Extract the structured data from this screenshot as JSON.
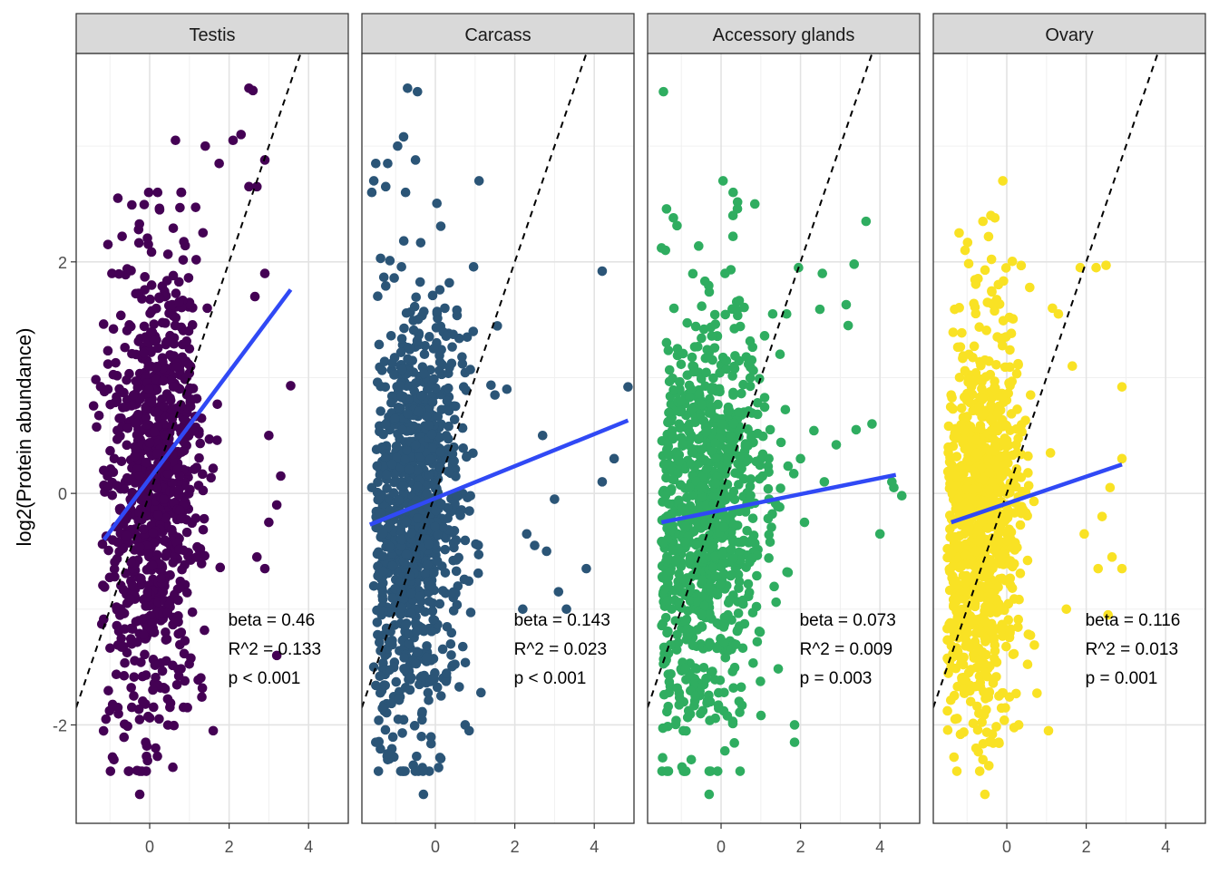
{
  "chart_data": {
    "type": "scatter",
    "ylabel": "log2(Protein abundance)",
    "xlabel": "",
    "xlim": [
      -1.85,
      5.0
    ],
    "ylim": [
      -2.85,
      3.8
    ],
    "x_ticks": [
      0,
      2,
      4
    ],
    "y_ticks": [
      -2,
      0,
      2
    ],
    "grid": true,
    "reference_line": {
      "style": "dashed",
      "color": "#000000",
      "slope": 1,
      "intercept": 0
    },
    "fit_color": "#3049f5",
    "panels": [
      {
        "name": "Testis",
        "color": "#440154",
        "fit": {
          "x": [
            -1.15,
            3.55
          ],
          "y": [
            -0.4,
            1.76
          ]
        },
        "stats": {
          "beta": "beta = 0.46",
          "r2": "R^2 = 0.133",
          "p": "p < 0.001"
        },
        "cloud": {
          "x_center": 0.1,
          "x_spread": 0.6,
          "y_center": 0.0,
          "y_spread": 0.95,
          "n": 900
        },
        "points": [
          [
            2.5,
            3.5
          ],
          [
            2.6,
            3.48
          ],
          [
            1.4,
            3.0
          ],
          [
            2.1,
            3.05
          ],
          [
            2.3,
            3.1
          ],
          [
            2.9,
            2.88
          ],
          [
            1.75,
            2.85
          ],
          [
            3.55,
            0.93
          ],
          [
            3.2,
            -1.4
          ],
          [
            3.3,
            0.15
          ],
          [
            3.2,
            -0.1
          ],
          [
            3.0,
            -0.25
          ],
          [
            2.9,
            -0.65
          ],
          [
            3.0,
            0.5
          ],
          [
            -0.25,
            -2.6
          ],
          [
            -0.9,
            -2.3
          ],
          [
            -0.1,
            -2.15
          ],
          [
            0.15,
            -2.2
          ],
          [
            1.6,
            -2.05
          ],
          [
            -1.1,
            -1.95
          ],
          [
            -0.4,
            -1.75
          ],
          [
            -0.8,
            -1.85
          ],
          [
            0.95,
            -1.85
          ],
          [
            2.9,
            1.9
          ],
          [
            2.65,
            1.7
          ],
          [
            2.5,
            2.65
          ],
          [
            2.7,
            2.65
          ],
          [
            1.45,
            1.6
          ],
          [
            2.7,
            -0.55
          ],
          [
            -1.05,
            2.15
          ],
          [
            -0.95,
            1.9
          ],
          [
            -1.05,
            0.9
          ],
          [
            0.65,
            3.05
          ],
          [
            -0.8,
            2.55
          ],
          [
            0.25,
            2.45
          ]
        ]
      },
      {
        "name": "Carcass",
        "color": "#2b5577",
        "fit": {
          "x": [
            -1.65,
            4.85
          ],
          "y": [
            -0.27,
            0.63
          ]
        },
        "stats": {
          "beta": "beta = 0.143",
          "r2": "R^2 = 0.023",
          "p": "p < 0.001"
        },
        "cloud": {
          "x_center": -0.55,
          "x_spread": 0.6,
          "y_center": -0.2,
          "y_spread": 0.9,
          "n": 1000
        },
        "points": [
          [
            -0.7,
            3.5
          ],
          [
            -0.45,
            3.47
          ],
          [
            -0.8,
            3.08
          ],
          [
            -0.95,
            3.0
          ],
          [
            -1.5,
            2.85
          ],
          [
            -1.2,
            2.85
          ],
          [
            -0.5,
            2.88
          ],
          [
            -1.55,
            2.7
          ],
          [
            -1.25,
            2.65
          ],
          [
            -0.75,
            2.6
          ],
          [
            1.1,
            2.7
          ],
          [
            -1.6,
            2.6
          ],
          [
            4.2,
            1.92
          ],
          [
            4.85,
            0.92
          ],
          [
            4.5,
            0.3
          ],
          [
            4.2,
            0.1
          ],
          [
            3.8,
            -0.65
          ],
          [
            3.3,
            -1.0
          ],
          [
            3.1,
            -0.85
          ],
          [
            2.5,
            -0.45
          ],
          [
            2.3,
            -0.35
          ],
          [
            -0.3,
            -2.6
          ],
          [
            -1.2,
            -2.3
          ],
          [
            -1.2,
            -2.25
          ],
          [
            0.75,
            -2.0
          ],
          [
            0.85,
            -2.05
          ],
          [
            -1.5,
            -2.15
          ],
          [
            -0.35,
            -2.1
          ],
          [
            2.2,
            -1.0
          ],
          [
            2.8,
            -0.5
          ],
          [
            0.8,
            1.35
          ],
          [
            1.5,
            0.85
          ],
          [
            3.0,
            -0.05
          ],
          [
            2.7,
            0.5
          ],
          [
            1.8,
            0.9
          ],
          [
            -1.6,
            0.05
          ],
          [
            -1.55,
            -1.5
          ],
          [
            -1.55,
            -0.8
          ]
        ]
      },
      {
        "name": "Accessory glands",
        "color": "#2fad60",
        "fit": {
          "x": [
            -1.5,
            4.4
          ],
          "y": [
            -0.25,
            0.16
          ]
        },
        "stats": {
          "beta": "beta = 0.073",
          "r2": "R^2 = 0.009",
          "p": "p = 0.003"
        },
        "cloud": {
          "x_center": -0.35,
          "x_spread": 0.75,
          "y_center": -0.2,
          "y_spread": 0.85,
          "n": 950
        },
        "points": [
          [
            -1.45,
            3.47
          ],
          [
            0.05,
            2.7
          ],
          [
            0.85,
            2.5
          ],
          [
            0.3,
            2.4
          ],
          [
            -1.2,
            2.38
          ],
          [
            1.95,
            1.95
          ],
          [
            2.55,
            1.9
          ],
          [
            3.65,
            2.35
          ],
          [
            3.35,
            1.98
          ],
          [
            3.15,
            1.63
          ],
          [
            3.2,
            1.45
          ],
          [
            3.8,
            0.6
          ],
          [
            4.35,
            0.05
          ],
          [
            4.55,
            -0.02
          ],
          [
            4.3,
            0.1
          ],
          [
            4.0,
            -0.35
          ],
          [
            1.65,
            1.55
          ],
          [
            1.85,
            -2.0
          ],
          [
            1.85,
            -2.15
          ],
          [
            -0.3,
            -2.6
          ],
          [
            -0.75,
            -2.3
          ],
          [
            -0.95,
            -2.05
          ],
          [
            -0.65,
            -1.75
          ],
          [
            2.6,
            0.1
          ],
          [
            2.1,
            -0.25
          ],
          [
            2.0,
            0.3
          ],
          [
            -1.4,
            2.1
          ],
          [
            -1.5,
            2.12
          ],
          [
            0.3,
            2.22
          ],
          [
            0.1,
            1.9
          ],
          [
            1.3,
            1.55
          ],
          [
            3.4,
            0.55
          ],
          [
            2.9,
            0.42
          ]
        ]
      },
      {
        "name": "Ovary",
        "color": "#f9e224",
        "fit": {
          "x": [
            -1.4,
            2.9
          ],
          "y": [
            -0.25,
            0.25
          ]
        },
        "stats": {
          "beta": "beta = 0.116",
          "r2": "R^2 = 0.013",
          "p": "p = 0.001"
        },
        "cloud": {
          "x_center": -0.6,
          "x_spread": 0.5,
          "y_center": -0.3,
          "y_spread": 0.85,
          "n": 900
        },
        "points": [
          [
            -0.1,
            2.7
          ],
          [
            -0.4,
            2.4
          ],
          [
            -0.6,
            2.35
          ],
          [
            -0.3,
            2.38
          ],
          [
            -1.2,
            2.25
          ],
          [
            -1.05,
            2.1
          ],
          [
            1.85,
            1.95
          ],
          [
            2.25,
            1.95
          ],
          [
            2.5,
            1.97
          ],
          [
            2.9,
            0.92
          ],
          [
            2.9,
            0.3
          ],
          [
            2.6,
            0.05
          ],
          [
            2.4,
            -0.2
          ],
          [
            2.65,
            -0.55
          ],
          [
            2.9,
            -0.65
          ],
          [
            1.95,
            -0.35
          ],
          [
            1.5,
            -1.0
          ],
          [
            -0.55,
            -2.6
          ],
          [
            -0.6,
            -2.3
          ],
          [
            -0.2,
            -2.15
          ],
          [
            0.3,
            -2.0
          ],
          [
            1.05,
            -2.05
          ],
          [
            -1.3,
            -1.95
          ],
          [
            -0.7,
            -1.9
          ],
          [
            2.55,
            -1.05
          ],
          [
            2.3,
            -0.65
          ],
          [
            1.3,
            1.55
          ],
          [
            1.15,
            1.6
          ],
          [
            0.6,
            0.85
          ],
          [
            1.1,
            0.35
          ],
          [
            1.65,
            1.1
          ],
          [
            -1.4,
            -1.5
          ],
          [
            -1.4,
            0.85
          ]
        ]
      }
    ]
  }
}
